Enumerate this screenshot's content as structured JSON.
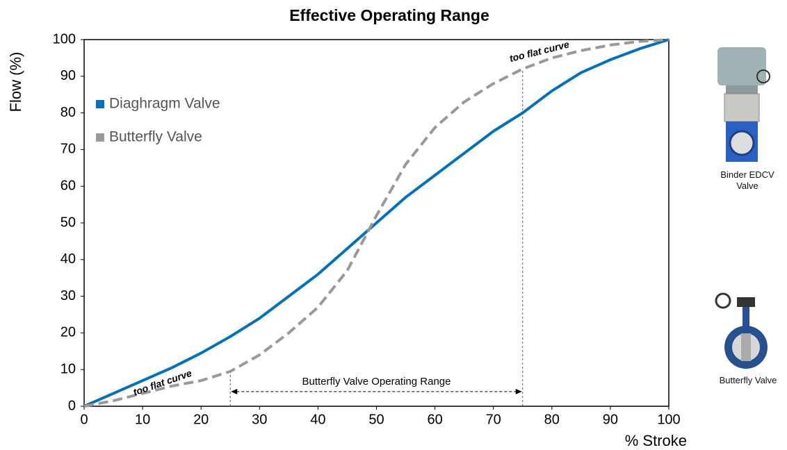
{
  "chart_data": {
    "type": "line",
    "title": "Effective Operating Range",
    "x_label": "% Stroke",
    "y_label": "Flow (%)",
    "x": [
      0,
      5,
      10,
      15,
      20,
      25,
      30,
      35,
      40,
      45,
      50,
      55,
      60,
      65,
      70,
      75,
      80,
      85,
      90,
      95,
      100
    ],
    "series": [
      {
        "name": "Diaghragm Valve",
        "color": "#0070c0",
        "dashed": false,
        "values": [
          0,
          3.5,
          7,
          10.5,
          14.5,
          19,
          24,
          30,
          36,
          43,
          50,
          57,
          63,
          69,
          75,
          80,
          86,
          91,
          94.5,
          97.5,
          100
        ]
      },
      {
        "name": "Butterfly Valve",
        "color": "#999999",
        "dashed": true,
        "values": [
          0,
          1.5,
          3.5,
          5.5,
          7,
          9.5,
          14,
          20,
          27,
          37,
          52,
          66,
          76,
          83,
          88,
          92,
          95,
          97,
          98.5,
          99.5,
          100
        ]
      }
    ],
    "xlim": [
      0,
      100
    ],
    "ylim": [
      0,
      100
    ],
    "xticks": [
      0,
      10,
      20,
      30,
      40,
      50,
      60,
      70,
      80,
      90,
      100
    ],
    "yticks": [
      0,
      10,
      20,
      30,
      40,
      50,
      60,
      70,
      80,
      90,
      100
    ],
    "grid": false,
    "legend": "upper-left",
    "annotations": [
      "too flat curve",
      "too flat curve"
    ],
    "operating_range": {
      "label": "Butterfly Valve Operating Range",
      "x": [
        25,
        75
      ]
    },
    "side_labels": [
      "Binder EDCV Valve",
      "Butterfly Valve"
    ]
  }
}
